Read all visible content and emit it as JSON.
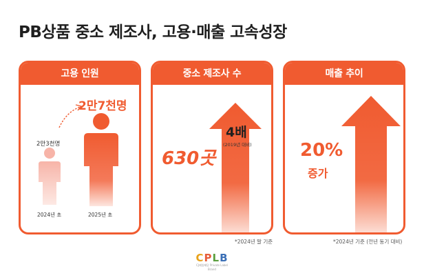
{
  "title": "PB상품 중소 제조사, 고용·매출 고속성장",
  "cards": [
    {
      "header": "고용 인원",
      "value_before": "2만3천명",
      "value_after": "2만7천명",
      "label_before": "2024년 초",
      "label_after": "2025년 초"
    },
    {
      "header": "중소 제조사 수",
      "value": "630곳",
      "multiplier": "4배",
      "multiplier_note": "(2019년 대비)",
      "footnote": "*2024년 말 기준"
    },
    {
      "header": "매출 추이",
      "value": "20%",
      "value_suffix": "증가",
      "footnote": "*2024년 기준 (전년 동기 대비)"
    }
  ],
  "logo": {
    "letters": [
      "C",
      "P",
      "L",
      "B"
    ],
    "letter_colors": [
      "#e8a21a",
      "#e65c3a",
      "#5a9e3d",
      "#3b6fb6"
    ],
    "subtitle": "CJ제일제당 Private Label Brand"
  },
  "colors": {
    "accent": "#f05b30"
  }
}
